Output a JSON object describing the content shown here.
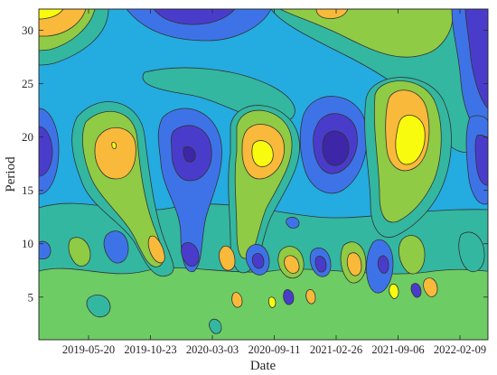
{
  "chart_data": {
    "type": "contour",
    "title": "",
    "xlabel": "Date",
    "ylabel": "Period",
    "x_ticks": [
      "2019-05-20",
      "2019-10-23",
      "2020-03-03",
      "2020-09-11",
      "2021-02-26",
      "2021-09-06",
      "2022-02-09"
    ],
    "y_ticks": [
      5,
      10,
      15,
      20,
      25,
      30
    ],
    "ylim": [
      1,
      32
    ],
    "colormap": "parula",
    "levels": 9,
    "grid": false,
    "legend": "none",
    "features": [
      {
        "kind": "trough",
        "x_date": "2019-01-20",
        "period": 18.5
      },
      {
        "kind": "peak",
        "x_date": "2019-08-10",
        "period": 18.5
      },
      {
        "kind": "trough",
        "x_date": "2020-01-05",
        "period": 18.0
      },
      {
        "kind": "peak",
        "x_date": "2020-06-20",
        "period": 18.5
      },
      {
        "kind": "trough",
        "x_date": "2021-01-15",
        "period": 18.0
      },
      {
        "kind": "peak",
        "x_date": "2021-08-10",
        "period": 19.0
      },
      {
        "kind": "trough",
        "x_date": "2022-04-01",
        "period": 18.5
      }
    ]
  }
}
